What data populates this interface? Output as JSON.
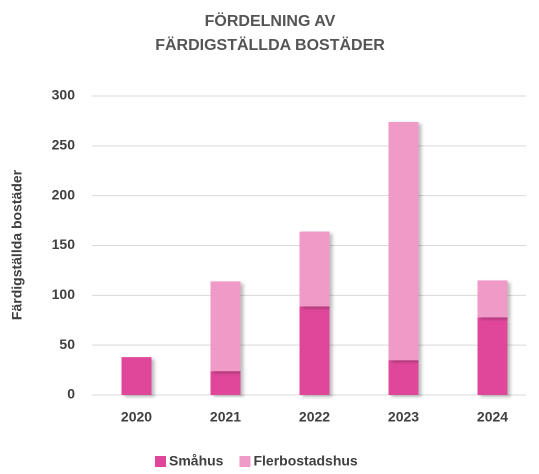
{
  "chart_data": {
    "type": "stacked_bar",
    "title": [
      "FÖRDELNING AV",
      "FÄRDIGSTÄLLDA BOSTÄDER"
    ],
    "y_label": "Färdigställda bostäder",
    "categories": [
      "2020",
      "2021",
      "2022",
      "2023",
      "2024"
    ],
    "series": [
      {
        "name": "Småhus",
        "color": "#e0469a",
        "values": [
          38,
          24,
          89,
          35,
          78
        ]
      },
      {
        "name": "Flerbostadshus",
        "color": "#f09ac8",
        "values": [
          0,
          90,
          75,
          239,
          37
        ]
      }
    ],
    "ylim": [
      0,
      300
    ],
    "yticks": [
      0,
      50,
      100,
      150,
      200,
      250,
      300
    ],
    "grid": true,
    "legend": "bottom"
  }
}
